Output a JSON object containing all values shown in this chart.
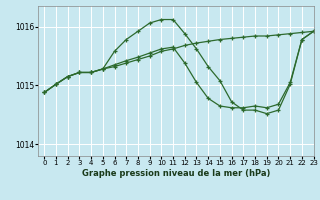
{
  "title": "Graphe pression niveau de la mer (hPa)",
  "background_color": "#c8e8f0",
  "grid_color": "#ffffff",
  "line_color": "#2d6a2d",
  "ylim": [
    1013.8,
    1016.35
  ],
  "xlim": [
    -0.5,
    23
  ],
  "yticks": [
    1014,
    1015,
    1016
  ],
  "xticks": [
    0,
    1,
    2,
    3,
    4,
    5,
    6,
    7,
    8,
    9,
    10,
    11,
    12,
    13,
    14,
    15,
    16,
    17,
    18,
    19,
    20,
    21,
    22,
    23
  ],
  "series": [
    [
      1014.88,
      1015.02,
      1015.15,
      1015.22,
      1015.22,
      1015.28,
      1015.58,
      1015.78,
      1015.92,
      1016.06,
      1016.12,
      1016.12,
      1015.88,
      1015.62,
      1015.32,
      1015.08,
      1014.72,
      1014.58,
      1014.58,
      1014.52,
      1014.58,
      1015.02,
      1015.78,
      1015.92
    ],
    [
      1014.88,
      1015.02,
      1015.15,
      1015.22,
      1015.22,
      1015.28,
      1015.35,
      1015.42,
      1015.48,
      1015.55,
      1015.62,
      1015.65,
      1015.38,
      1015.05,
      1014.78,
      1014.65,
      1014.62,
      1014.62,
      1014.65,
      1014.62,
      1014.68,
      1015.05,
      1015.78,
      1015.92
    ],
    [
      1014.88,
      1015.02,
      1015.15,
      1015.22,
      1015.22,
      1015.28,
      1015.32,
      1015.38,
      1015.44,
      1015.5,
      1015.58,
      1015.62,
      1015.68,
      1015.72,
      1015.75,
      1015.78,
      1015.8,
      1015.82,
      1015.84,
      1015.84,
      1015.86,
      1015.88,
      1015.9,
      1015.92
    ]
  ]
}
